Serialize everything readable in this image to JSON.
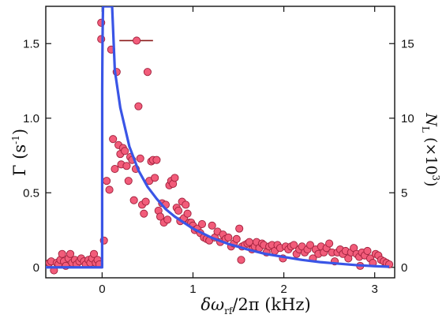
{
  "chart_data": {
    "type": "scatter",
    "title": "",
    "xlabel": "δω_rf/2π (kHz)",
    "ylabel": "Γ (s^-1)",
    "ylabel_right": "N_L (×10^3)",
    "axis_text": {
      "x_main": "δω",
      "x_sub": "rf",
      "x_rest": "/2π (kHz)",
      "y_main": "Γ (s",
      "y_sup": "-1",
      "y_close": ")",
      "y2_main": "N",
      "y2_sub": "L",
      "y2_mid": " (×10",
      "y2_sup": "3",
      "y2_close": ")"
    },
    "xlim": [
      -0.62,
      3.22
    ],
    "ylim": [
      -0.07,
      1.75
    ],
    "ylim_right": [
      -0.7,
      17.5
    ],
    "grid": false,
    "legend": "none",
    "x_ticks": [
      0,
      1,
      2,
      3
    ],
    "y_ticks": [
      0,
      0.5,
      1.0,
      1.5
    ],
    "y_tick_labels": [
      "0",
      "0.5",
      "1.0",
      "1.5"
    ],
    "y_right_ticks": [
      0,
      5,
      10,
      15
    ],
    "colors": {
      "points_fill": "#f25c7a",
      "points_edge": "#a0203c",
      "curve": "#3a55e6",
      "errorbar": "#8b1a1a",
      "axes": "#111111"
    },
    "errorbar": {
      "x": 0.35,
      "y": 1.52,
      "xerr": [
        0.16,
        0.21
      ]
    },
    "series": [
      {
        "marker": "circle",
        "points": [
          [
            -0.58,
            0.03
          ],
          [
            -0.56,
            0.04
          ],
          [
            -0.53,
            -0.02
          ],
          [
            -0.5,
            0.03
          ],
          [
            -0.48,
            0.02
          ],
          [
            -0.46,
            0.05
          ],
          [
            -0.44,
            0.09
          ],
          [
            -0.42,
            0.04
          ],
          [
            -0.4,
            0.01
          ],
          [
            -0.37,
            0.06
          ],
          [
            -0.35,
            0.09
          ],
          [
            -0.33,
            0.03
          ],
          [
            -0.3,
            0.05
          ],
          [
            -0.28,
            0.02
          ],
          [
            -0.25,
            0.04
          ],
          [
            -0.23,
            0.06
          ],
          [
            -0.2,
            0.04
          ],
          [
            -0.18,
            0.02
          ],
          [
            -0.15,
            0.05
          ],
          [
            -0.13,
            0.03
          ],
          [
            -0.11,
            0.06
          ],
          [
            -0.09,
            0.09
          ],
          [
            -0.07,
            0.03
          ],
          [
            -0.05,
            0.05
          ],
          [
            -0.03,
            0.02
          ],
          [
            -0.01,
            1.64
          ],
          [
            -0.01,
            1.53
          ],
          [
            0.02,
            0.18
          ],
          [
            0.05,
            0.58
          ],
          [
            0.08,
            0.52
          ],
          [
            0.1,
            1.46
          ],
          [
            0.12,
            0.86
          ],
          [
            0.14,
            0.66
          ],
          [
            0.16,
            1.31
          ],
          [
            0.18,
            0.82
          ],
          [
            0.2,
            0.76
          ],
          [
            0.21,
            0.69
          ],
          [
            0.23,
            0.8
          ],
          [
            0.25,
            0.78
          ],
          [
            0.27,
            0.68
          ],
          [
            0.29,
            0.58
          ],
          [
            0.31,
            0.74
          ],
          [
            0.33,
            0.72
          ],
          [
            0.35,
            0.45
          ],
          [
            0.37,
            0.66
          ],
          [
            0.38,
            1.52
          ],
          [
            0.4,
            1.08
          ],
          [
            0.42,
            0.73
          ],
          [
            0.44,
            0.42
          ],
          [
            0.46,
            0.36
          ],
          [
            0.48,
            0.44
          ],
          [
            0.5,
            1.31
          ],
          [
            0.52,
            0.58
          ],
          [
            0.54,
            0.71
          ],
          [
            0.56,
            0.72
          ],
          [
            0.58,
            0.6
          ],
          [
            0.6,
            0.72
          ],
          [
            0.62,
            0.38
          ],
          [
            0.64,
            0.34
          ],
          [
            0.66,
            0.43
          ],
          [
            0.68,
            0.3
          ],
          [
            0.7,
            0.42
          ],
          [
            0.72,
            0.32
          ],
          [
            0.74,
            0.55
          ],
          [
            0.76,
            0.58
          ],
          [
            0.78,
            0.56
          ],
          [
            0.8,
            0.6
          ],
          [
            0.82,
            0.4
          ],
          [
            0.84,
            0.38
          ],
          [
            0.86,
            0.31
          ],
          [
            0.88,
            0.44
          ],
          [
            0.9,
            0.33
          ],
          [
            0.92,
            0.42
          ],
          [
            0.94,
            0.36
          ],
          [
            0.96,
            0.3
          ],
          [
            0.98,
            0.3
          ],
          [
            1.0,
            0.28
          ],
          [
            1.02,
            0.25
          ],
          [
            1.05,
            0.26
          ],
          [
            1.08,
            0.23
          ],
          [
            1.1,
            0.29
          ],
          [
            1.12,
            0.2
          ],
          [
            1.15,
            0.19
          ],
          [
            1.18,
            0.18
          ],
          [
            1.21,
            0.28
          ],
          [
            1.24,
            0.2
          ],
          [
            1.27,
            0.24
          ],
          [
            1.3,
            0.17
          ],
          [
            1.33,
            0.22
          ],
          [
            1.36,
            0.19
          ],
          [
            1.39,
            0.2
          ],
          [
            1.42,
            0.14
          ],
          [
            1.45,
            0.16
          ],
          [
            1.48,
            0.19
          ],
          [
            1.51,
            0.26
          ],
          [
            1.54,
            0.14
          ],
          [
            1.57,
            0.15
          ],
          [
            1.6,
            0.16
          ],
          [
            1.62,
            0.17
          ],
          [
            1.65,
            0.12
          ],
          [
            1.68,
            0.14
          ],
          [
            1.7,
            0.17
          ],
          [
            1.73,
            0.13
          ],
          [
            1.76,
            0.16
          ],
          [
            1.78,
            0.15
          ],
          [
            1.81,
            0.1
          ],
          [
            1.84,
            0.14
          ],
          [
            1.87,
            0.15
          ],
          [
            1.9,
            0.11
          ],
          [
            1.93,
            0.15
          ],
          [
            1.96,
            0.13
          ],
          [
            1.99,
            0.06
          ],
          [
            2.02,
            0.14
          ],
          [
            2.05,
            0.12
          ],
          [
            2.08,
            0.14
          ],
          [
            2.11,
            0.15
          ],
          [
            2.14,
            0.09
          ],
          [
            2.17,
            0.12
          ],
          [
            2.2,
            0.14
          ],
          [
            2.23,
            0.1
          ],
          [
            2.26,
            0.12
          ],
          [
            2.29,
            0.15
          ],
          [
            2.32,
            0.06
          ],
          [
            2.35,
            0.12
          ],
          [
            2.38,
            0.09
          ],
          [
            2.41,
            0.14
          ],
          [
            2.44,
            0.1
          ],
          [
            2.47,
            0.13
          ],
          [
            2.5,
            0.16
          ],
          [
            2.53,
            0.1
          ],
          [
            2.56,
            0.04
          ],
          [
            2.59,
            0.1
          ],
          [
            2.62,
            0.12
          ],
          [
            2.65,
            0.09
          ],
          [
            2.68,
            0.11
          ],
          [
            2.71,
            0.06
          ],
          [
            2.74,
            0.1
          ],
          [
            2.77,
            0.13
          ],
          [
            2.8,
            0.09
          ],
          [
            2.83,
            0.07
          ],
          [
            2.86,
            0.1
          ],
          [
            2.89,
            0.08
          ],
          [
            2.92,
            0.11
          ],
          [
            2.95,
            0.06
          ],
          [
            2.98,
            0.03
          ],
          [
            3.01,
            0.09
          ],
          [
            3.04,
            0.08
          ],
          [
            3.07,
            0.05
          ],
          [
            3.1,
            0.04
          ],
          [
            3.13,
            0.03
          ],
          [
            3.16,
            0.02
          ],
          [
            1.53,
            0.05
          ],
          [
            2.84,
            0.01
          ]
        ]
      },
      {
        "marker": "line",
        "curve_points": [
          [
            -0.62,
            0.0
          ],
          [
            -0.001,
            0.0
          ],
          [
            0.0,
            0.0
          ],
          [
            0.001,
            1.18
          ],
          [
            0.003,
            1.4
          ],
          [
            0.006,
            1.6
          ],
          [
            0.01,
            1.75
          ],
          [
            0.11,
            1.75
          ],
          [
            0.14,
            1.32
          ],
          [
            0.2,
            1.07
          ],
          [
            0.3,
            0.81
          ],
          [
            0.4,
            0.65
          ],
          [
            0.5,
            0.54
          ],
          [
            0.6,
            0.46
          ],
          [
            0.7,
            0.39
          ],
          [
            0.8,
            0.34
          ],
          [
            1.0,
            0.26
          ],
          [
            1.2,
            0.2
          ],
          [
            1.4,
            0.155
          ],
          [
            1.6,
            0.12
          ],
          [
            1.8,
            0.09
          ],
          [
            2.0,
            0.07
          ],
          [
            2.2,
            0.05
          ],
          [
            2.4,
            0.035
          ],
          [
            2.6,
            0.025
          ],
          [
            2.8,
            0.015
          ],
          [
            3.0,
            0.008
          ],
          [
            3.16,
            0.004
          ]
        ]
      }
    ]
  }
}
